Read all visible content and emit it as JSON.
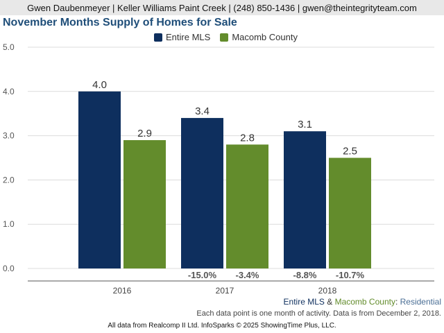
{
  "header": {
    "contact": "Gwen Daubenmeyer | Keller Williams Paint Creek | (248) 850-1436 | gwen@theintegrityteam.com"
  },
  "colors": {
    "entire_mls": "#0e2f5e",
    "macomb": "#638c2c",
    "title": "#1f4e79",
    "residential": "#4a6e95"
  },
  "chart_data": {
    "type": "bar",
    "title": "November Months Supply of Homes for Sale",
    "categories": [
      "2016",
      "2017",
      "2018"
    ],
    "series": [
      {
        "name": "Entire MLS",
        "values": [
          4.0,
          3.4,
          3.1
        ],
        "value_labels": [
          "4.0",
          "3.4",
          "3.1"
        ],
        "change_labels": [
          "",
          "-15.0%",
          "-8.8%"
        ]
      },
      {
        "name": "Macomb County",
        "values": [
          2.9,
          2.8,
          2.5
        ],
        "value_labels": [
          "2.9",
          "2.8",
          "2.5"
        ],
        "change_labels": [
          "",
          "-3.4%",
          "-10.7%"
        ]
      }
    ],
    "ylim": [
      0,
      5
    ],
    "yticks": [
      "0.0",
      "1.0",
      "2.0",
      "3.0",
      "4.0",
      "5.0"
    ],
    "grid": true,
    "legend_position": "top"
  },
  "footer": {
    "legend_entire": "Entire MLS",
    "legend_amp": " & ",
    "legend_macomb": "Macomb County",
    "legend_colon": ": ",
    "legend_type": "Residential",
    "note": "Each data point is one month of activity. Data is from December 2, 2018.",
    "source": "All data from Realcomp II Ltd. InfoSparks © 2025 ShowingTime Plus, LLC."
  }
}
